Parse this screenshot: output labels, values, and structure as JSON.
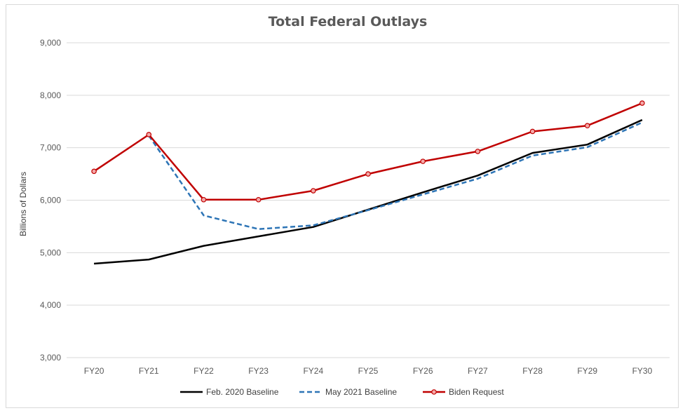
{
  "chart_data": {
    "type": "line",
    "title": "Total Federal Outlays",
    "xlabel": "",
    "ylabel": "Billions of Dollars",
    "categories": [
      "FY20",
      "FY21",
      "FY22",
      "FY23",
      "FY24",
      "FY25",
      "FY26",
      "FY27",
      "FY28",
      "FY29",
      "FY30"
    ],
    "ylim": [
      3000,
      9000
    ],
    "yticks": [
      "3,000",
      "4,000",
      "5,000",
      "6,000",
      "7,000",
      "8,000",
      "9,000"
    ],
    "ytick_values": [
      3000,
      4000,
      5000,
      6000,
      7000,
      8000,
      9000
    ],
    "grid": true,
    "legend_position": "bottom",
    "series": [
      {
        "name": "Feb. 2020 Baseline",
        "color": "#000000",
        "style": "solid",
        "markers": false,
        "values": [
          4790,
          4870,
          5130,
          5310,
          5490,
          5820,
          6150,
          6470,
          6900,
          7060,
          7530
        ]
      },
      {
        "name": "May 2021 Baseline",
        "color": "#2e75b6",
        "style": "dashed",
        "markers": false,
        "values": [
          null,
          7230,
          5710,
          5450,
          5520,
          5810,
          6110,
          6410,
          6850,
          7010,
          7480
        ]
      },
      {
        "name": "Biden Request",
        "color": "#c00000",
        "style": "solid",
        "markers": true,
        "values": [
          6550,
          7250,
          6010,
          6010,
          6180,
          6500,
          6740,
          6930,
          7310,
          7420,
          7850
        ]
      }
    ]
  }
}
